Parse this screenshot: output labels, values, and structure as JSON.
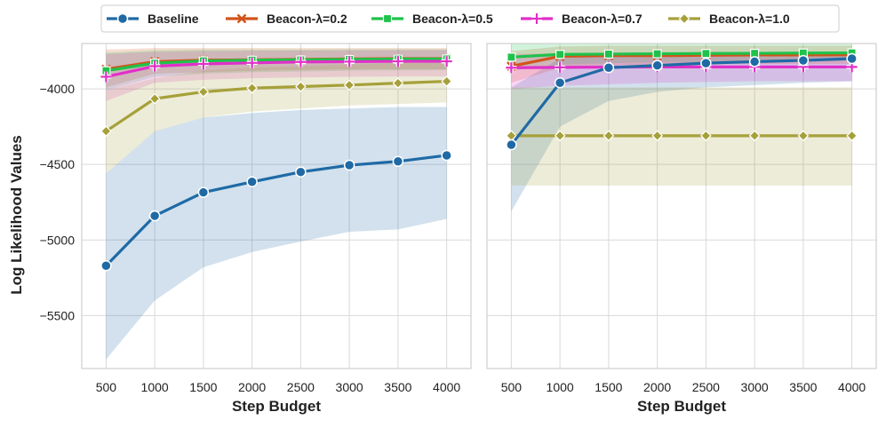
{
  "chart_data": {
    "type": "line",
    "ylabel": "Log Likelihood Values",
    "ylim": [
      -5850,
      -3700
    ],
    "yticks": [
      -4000,
      -4500,
      -5000,
      -5500
    ],
    "ytick_labels": [
      "−4000",
      "−4500",
      "−5000",
      "−5500"
    ],
    "x": [
      500,
      1000,
      1500,
      2000,
      2500,
      3000,
      3500,
      4000
    ],
    "xtick_labels": [
      "500",
      "1000",
      "1500",
      "2000",
      "2500",
      "3000",
      "3500",
      "4000"
    ],
    "xlim": [
      250,
      4250
    ],
    "legend": {
      "placement": "top-center",
      "entries": [
        {
          "label": "Baseline",
          "color": "#1f6aa5",
          "marker": "circle"
        },
        {
          "label": "Beacon-λ=0.2",
          "color": "#d1541b",
          "marker": "x"
        },
        {
          "label": "Beacon-λ=0.5",
          "color": "#1fc24a",
          "marker": "square"
        },
        {
          "label": "Beacon-λ=0.7",
          "color": "#e030c8",
          "marker": "plus"
        },
        {
          "label": "Beacon-λ=1.0",
          "color": "#a6a03a",
          "marker": "diamond"
        }
      ]
    },
    "panels": [
      {
        "name": "left",
        "xlabel": "Step Budget",
        "grid": true,
        "series": [
          {
            "name": "Baseline",
            "values": [
              -5170,
              -4840,
              -4685,
              -4615,
              -4550,
              -4505,
              -4480,
              -4440
            ],
            "band_low": [
              -5790,
              -5400,
              -5180,
              -5080,
              -5010,
              -4945,
              -4930,
              -4860
            ],
            "band_high": [
              -4560,
              -4280,
              -4190,
              -4160,
              -4140,
              -4130,
              -4120,
              -4120
            ]
          },
          {
            "name": "Beacon-λ=0.2",
            "values": [
              -3870,
              -3820,
              -3810,
              -3808,
              -3805,
              -3802,
              -3800,
              -3800
            ],
            "band_low": [
              -3990,
              -3900,
              -3890,
              -3880,
              -3875,
              -3870,
              -3870,
              -3870
            ],
            "band_high": [
              -3740,
              -3730,
              -3730,
              -3730,
              -3730,
              -3730,
              -3730,
              -3730
            ]
          },
          {
            "name": "Beacon-λ=0.5",
            "values": [
              -3880,
              -3830,
              -3815,
              -3810,
              -3808,
              -3805,
              -3803,
              -3802
            ],
            "band_low": [
              -4010,
              -3920,
              -3900,
              -3890,
              -3885,
              -3880,
              -3878,
              -3876
            ],
            "band_high": [
              -3760,
              -3745,
              -3740,
              -3740,
              -3740,
              -3738,
              -3738,
              -3738
            ]
          },
          {
            "name": "Beacon-λ=0.7",
            "values": [
              -3920,
              -3850,
              -3835,
              -3828,
              -3822,
              -3820,
              -3818,
              -3818
            ],
            "band_low": [
              -4080,
              -3960,
              -3940,
              -3930,
              -3925,
              -3920,
              -3918,
              -3918
            ],
            "band_high": [
              -3770,
              -3755,
              -3750,
              -3748,
              -3746,
              -3745,
              -3744,
              -3744
            ]
          },
          {
            "name": "Beacon-λ=1.0",
            "values": [
              -4280,
              -4065,
              -4020,
              -3995,
              -3985,
              -3975,
              -3962,
              -3950
            ],
            "band_low": [
              -4560,
              -4280,
              -4190,
              -4150,
              -4130,
              -4110,
              -4100,
              -4090
            ],
            "band_high": [
              -4010,
              -3930,
              -3880,
              -3860,
              -3850,
              -3840,
              -3830,
              -3830
            ]
          }
        ]
      },
      {
        "name": "right",
        "xlabel": "Step Budget",
        "grid": true,
        "series": [
          {
            "name": "Baseline",
            "values": [
              -4370,
              -3960,
              -3860,
              -3845,
              -3830,
              -3820,
              -3812,
              -3800
            ],
            "band_low": [
              -4810,
              -4250,
              -4080,
              -4020,
              -3990,
              -3975,
              -3960,
              -3950
            ],
            "band_high": [
              -3990,
              -3800,
              -3780,
              -3780,
              -3780,
              -3780,
              -3780,
              -3780
            ]
          },
          {
            "name": "Beacon-λ=0.2",
            "values": [
              -3850,
              -3785,
              -3780,
              -3780,
              -3778,
              -3776,
              -3776,
              -3775
            ],
            "band_low": [
              -3960,
              -3860,
              -3845,
              -3840,
              -3838,
              -3835,
              -3835,
              -3835
            ],
            "band_high": [
              -3750,
              -3720,
              -3715,
              -3715,
              -3715,
              -3715,
              -3715,
              -3715
            ]
          },
          {
            "name": "Beacon-λ=0.5",
            "values": [
              -3790,
              -3772,
              -3770,
              -3768,
              -3766,
              -3765,
              -3763,
              -3762
            ],
            "band_low": [
              -3880,
              -3840,
              -3830,
              -3825,
              -3822,
              -3820,
              -3818,
              -3815
            ],
            "band_high": [
              -3700,
              -3700,
              -3700,
              -3700,
              -3700,
              -3700,
              -3700,
              -3700
            ]
          },
          {
            "name": "Beacon-λ=0.7",
            "values": [
              -3860,
              -3858,
              -3856,
              -3855,
              -3855,
              -3855,
              -3855,
              -3855
            ],
            "band_low": [
              -4000,
              -3980,
              -3970,
              -3960,
              -3955,
              -3950,
              -3950,
              -3950
            ],
            "band_high": [
              -3770,
              -3765,
              -3760,
              -3760,
              -3760,
              -3760,
              -3760,
              -3760
            ]
          },
          {
            "name": "Beacon-λ=1.0",
            "values": [
              -4310,
              -4310,
              -4310,
              -4310,
              -4310,
              -4310,
              -4310,
              -4310
            ],
            "band_low": [
              -4640,
              -4640,
              -4640,
              -4640,
              -4640,
              -4640,
              -4640,
              -4640
            ],
            "band_high": [
              -3990,
              -3990,
              -3990,
              -3990,
              -3990,
              -3990,
              -3990,
              -3990
            ]
          }
        ]
      }
    ]
  }
}
